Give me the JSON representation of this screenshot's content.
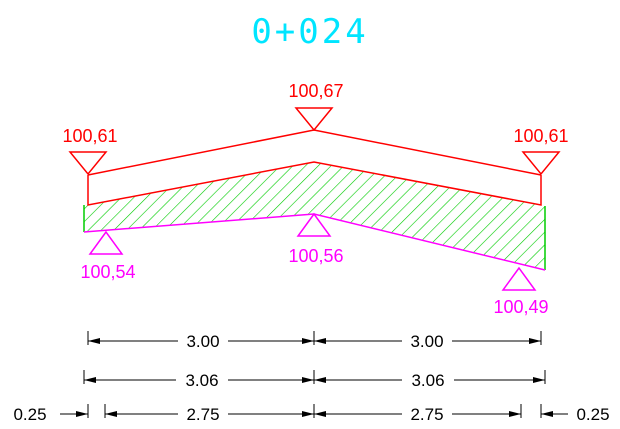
{
  "station": "0+024",
  "surface_levels": {
    "left": "100,61",
    "center": "100,67",
    "right": "100,61"
  },
  "subgrade_levels": {
    "left": "100,54",
    "center": "100,56",
    "right": "100,49"
  },
  "dimensions": {
    "row1": [
      "3.00",
      "3.00"
    ],
    "row2": [
      "3.06",
      "3.06"
    ],
    "row3": [
      "0.25",
      "2.75",
      "2.75",
      "0.25"
    ]
  },
  "colors": {
    "station": "#00e5ff",
    "surface": "#ff0000",
    "subgrade": "#ff00ff",
    "hatch": "#00cc00",
    "dimension": "#000000"
  }
}
